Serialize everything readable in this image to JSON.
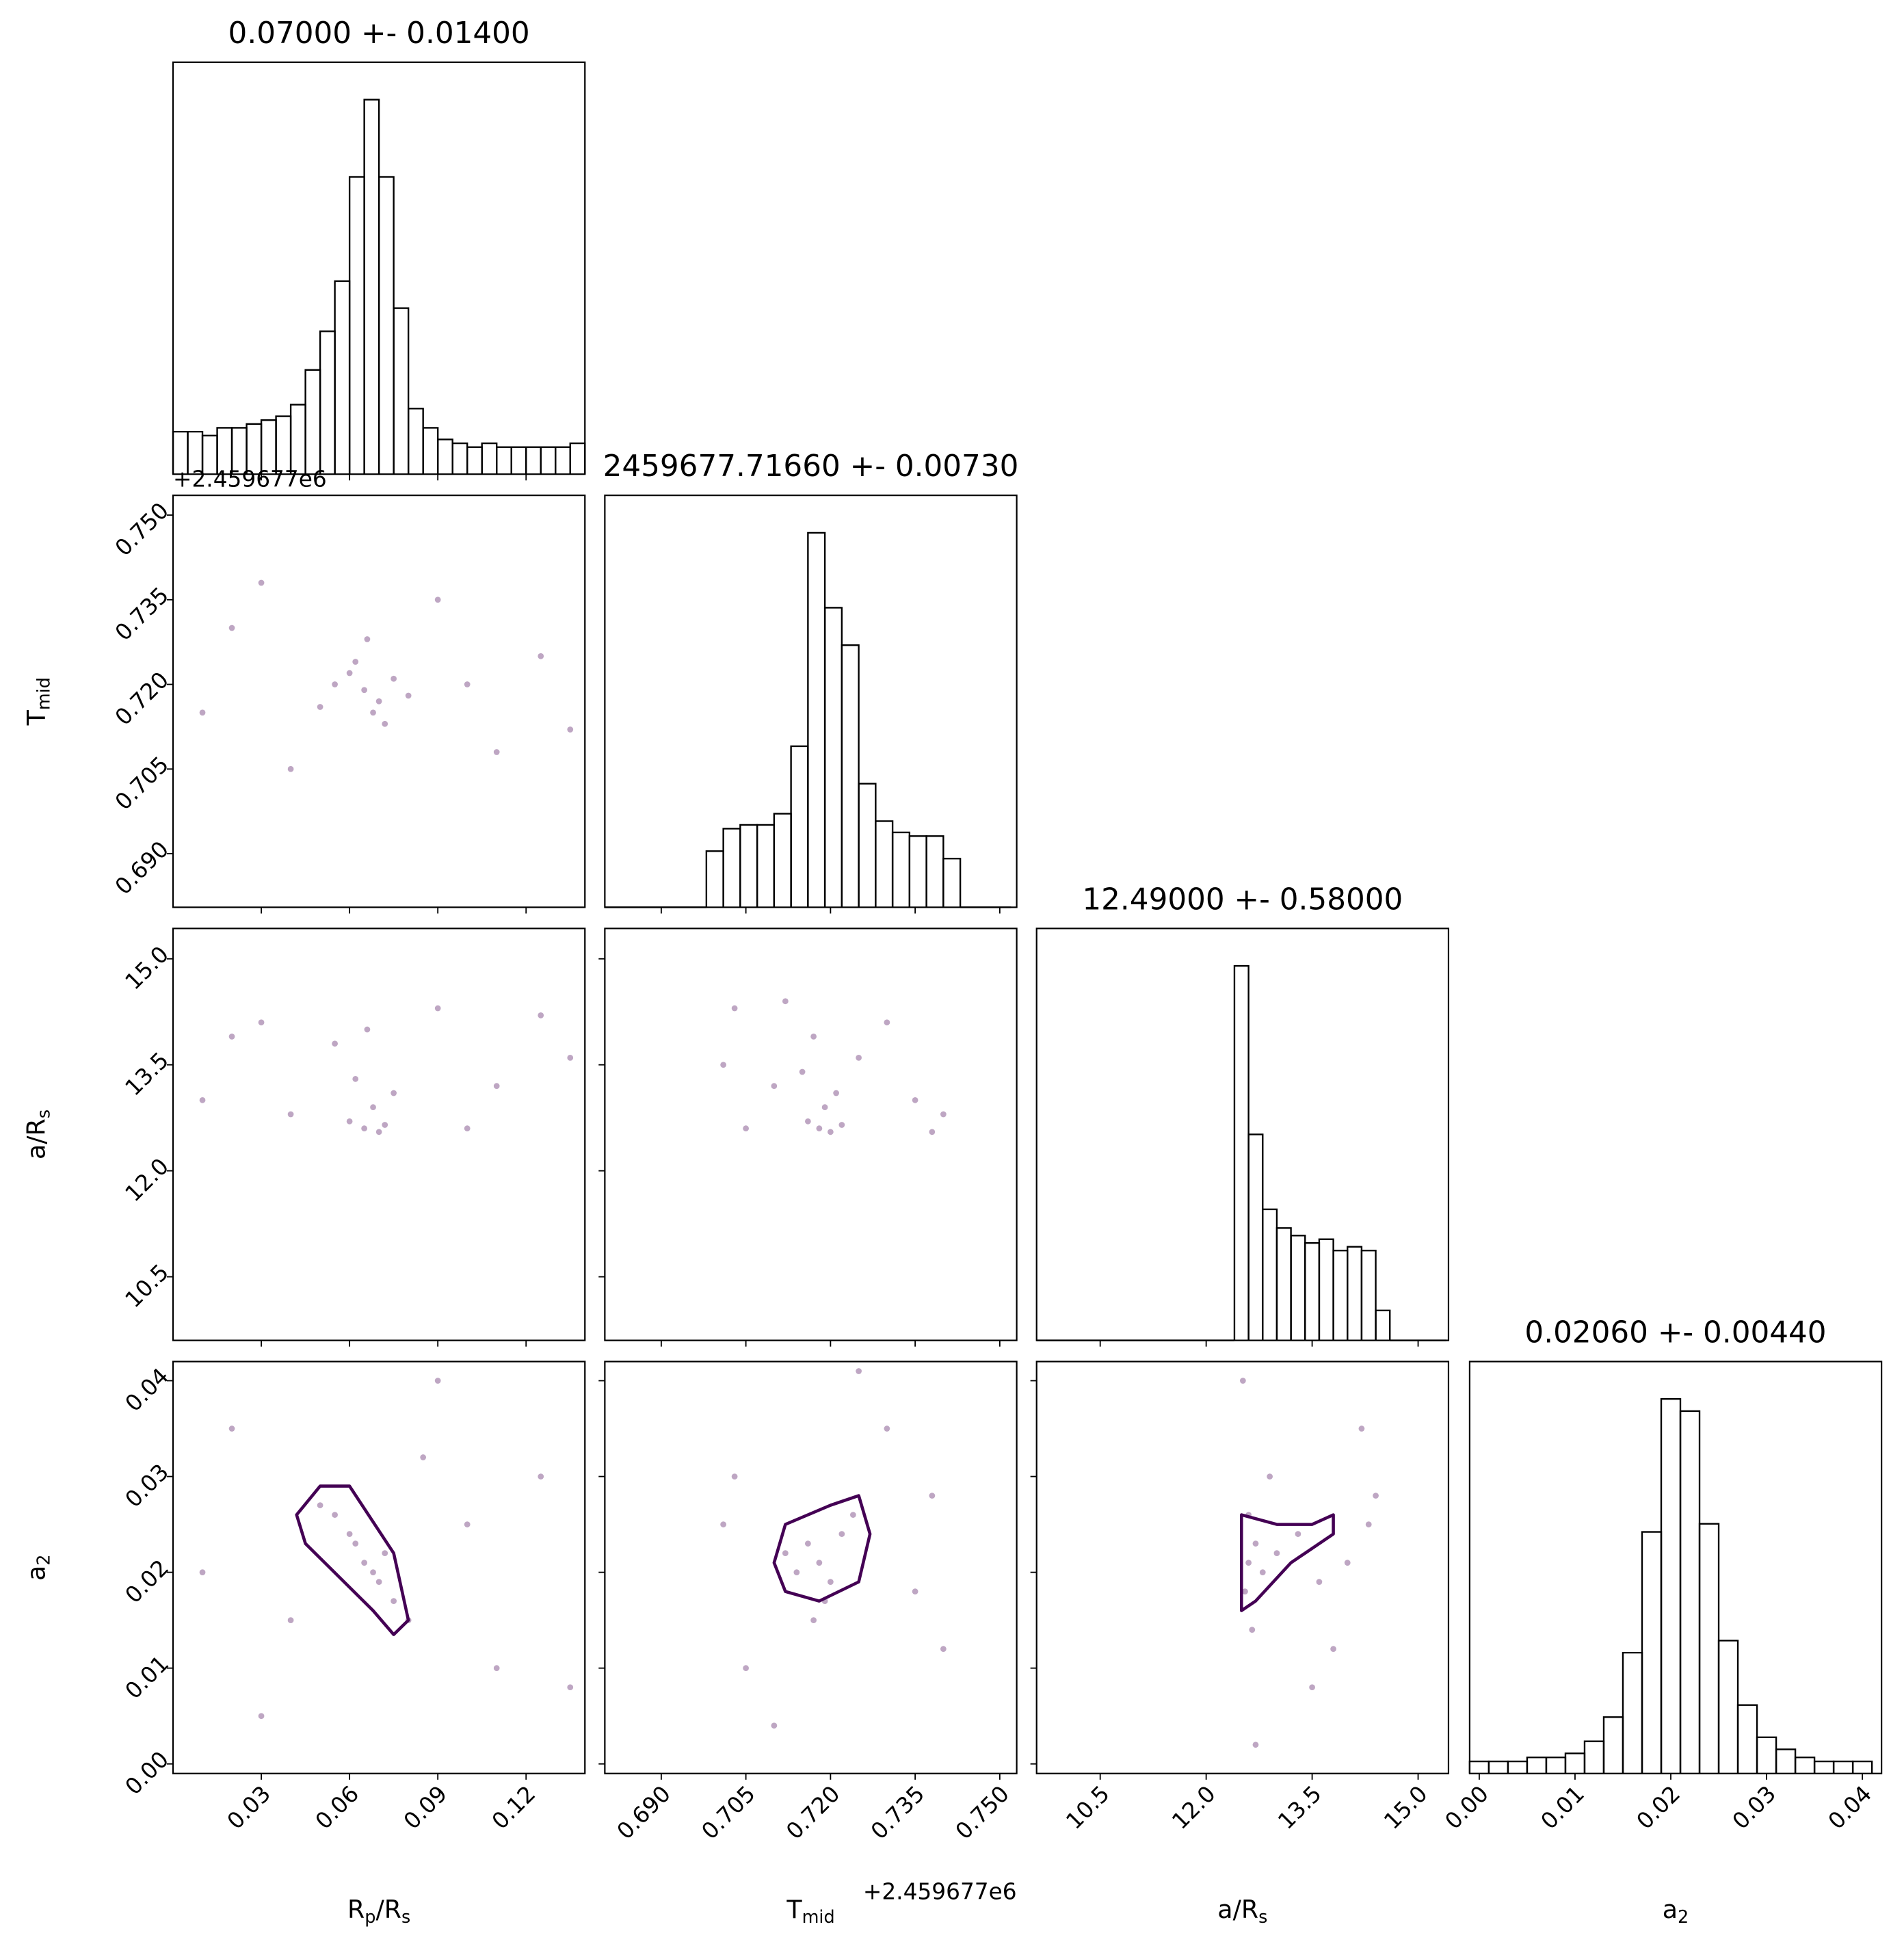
{
  "chart_data": [
    {
      "type": "histogram",
      "title": "0.07000 +- 0.01400",
      "color": "#000000",
      "bins": [
        0,
        0.005,
        0.01,
        0.015,
        0.02,
        0.025,
        0.03,
        0.035,
        0.04,
        0.045,
        0.05,
        0.055,
        0.06,
        0.065,
        0.07,
        0.075,
        0.08,
        0.085,
        0.09,
        0.095,
        0.1,
        0.105,
        0.11,
        0.115,
        0.12,
        0.125,
        0.13,
        0.135,
        0.14
      ],
      "counts": [
        11,
        11,
        10,
        12,
        12,
        13,
        14,
        15,
        18,
        27,
        37,
        50,
        77,
        97,
        77,
        43,
        17,
        12,
        9,
        8,
        7,
        8,
        7,
        7,
        7,
        7,
        7,
        8
      ],
      "xlim": [
        0,
        0.14
      ],
      "xticks": [
        0.03,
        0.06,
        0.09,
        0.12
      ]
    },
    {
      "type": "scatter",
      "color": "#440154",
      "ylabel": [
        "T",
        "mid"
      ],
      "y_offset": "+2.459677e6",
      "x": [
        0.065,
        0.06,
        0.07,
        0.068,
        0.055,
        0.075,
        0.062,
        0.072,
        0.05,
        0.08,
        0.02,
        0.11,
        0.03,
        0.125,
        0.09,
        0.04,
        0.1,
        0.135,
        0.01,
        0.066
      ],
      "y": [
        0.719,
        0.722,
        0.717,
        0.715,
        0.72,
        0.721,
        0.724,
        0.713,
        0.716,
        0.718,
        0.73,
        0.708,
        0.738,
        0.725,
        0.735,
        0.705,
        0.72,
        0.712,
        0.715,
        0.728
      ],
      "xlim": [
        0,
        0.14
      ],
      "xticks": [
        0.03,
        0.06,
        0.09,
        0.12
      ],
      "ylim": [
        0.6805,
        0.7535
      ],
      "yticks": [
        {
          "value": 0.69,
          "label": "0.690"
        },
        {
          "value": 0.705,
          "label": "0.705"
        },
        {
          "value": 0.72,
          "label": "0.720"
        },
        {
          "value": 0.735,
          "label": "0.735"
        },
        {
          "value": 0.75,
          "label": "0.750"
        }
      ]
    },
    {
      "type": "histogram",
      "title": "2459677.71660 +- 0.00730",
      "color": "#000000",
      "bins": [
        0.68,
        0.683,
        0.686,
        0.689,
        0.692,
        0.695,
        0.698,
        0.701,
        0.704,
        0.707,
        0.71,
        0.713,
        0.716,
        0.719,
        0.722,
        0.725,
        0.728,
        0.731,
        0.734,
        0.737,
        0.74,
        0.743,
        0.746,
        0.749,
        0.752
      ],
      "counts": [
        0,
        0,
        0,
        0,
        0,
        0,
        15,
        21,
        22,
        22,
        25,
        43,
        100,
        80,
        70,
        33,
        23,
        20,
        19,
        19,
        13,
        0,
        0,
        0
      ],
      "xlim": [
        0.68,
        0.753
      ],
      "xticks": [
        {
          "value": 0.69,
          "label": "0.690"
        },
        {
          "value": 0.705,
          "label": "0.705"
        },
        {
          "value": 0.72,
          "label": "0.720"
        },
        {
          "value": 0.735,
          "label": "0.735"
        },
        {
          "value": 0.75,
          "label": "0.750"
        }
      ]
    },
    {
      "type": "scatter",
      "color": "#440154",
      "ylabel": [
        "a/R",
        "s"
      ],
      "x": [
        0.065,
        0.06,
        0.07,
        0.068,
        0.062,
        0.072,
        0.055,
        0.075,
        0.02,
        0.11,
        0.04,
        0.125,
        0.09,
        0.01,
        0.1,
        0.135,
        0.03,
        0.066
      ],
      "y": [
        12.6,
        12.7,
        12.55,
        12.9,
        13.3,
        12.65,
        13.8,
        13.1,
        13.9,
        13.2,
        12.8,
        14.2,
        14.3,
        13.0,
        12.6,
        13.6,
        14.1,
        14.0
      ],
      "xlim": [
        0,
        0.14
      ],
      "xticks": [
        0.03,
        0.06,
        0.09,
        0.12
      ],
      "ylim": [
        9.6,
        15.43
      ],
      "yticks": [
        10.5,
        {
          "value": 12,
          "label": "12.0"
        },
        13.5,
        {
          "value": 15,
          "label": "15.0"
        }
      ]
    },
    {
      "type": "scatter",
      "color": "#440154",
      "x": [
        0.718,
        0.716,
        0.72,
        0.719,
        0.715,
        0.722,
        0.717,
        0.703,
        0.74,
        0.71,
        0.73,
        0.735,
        0.705,
        0.725,
        0.712,
        0.738,
        0.701,
        0.721
      ],
      "y": [
        12.6,
        12.7,
        12.55,
        12.9,
        13.4,
        12.65,
        13.9,
        14.3,
        12.8,
        13.2,
        14.1,
        13.0,
        12.6,
        13.6,
        14.4,
        12.55,
        13.5,
        13.1
      ],
      "xlim": [
        0.68,
        0.753
      ],
      "xticks": [
        {
          "value": 0.69,
          "label": "0.690"
        },
        {
          "value": 0.705,
          "label": "0.705"
        },
        {
          "value": 0.72,
          "label": "0.720"
        },
        {
          "value": 0.735,
          "label": "0.735"
        },
        {
          "value": 0.75,
          "label": "0.750"
        }
      ],
      "ylim": [
        9.6,
        15.43
      ],
      "yticks": [
        10.5,
        {
          "value": 12,
          "label": "12.0"
        },
        13.5,
        {
          "value": 15,
          "label": "15.0"
        }
      ]
    },
    {
      "type": "histogram",
      "title": "12.49000 +- 0.58000",
      "color": "#000000",
      "bins": [
        9.6,
        9.8,
        10.0,
        10.2,
        10.4,
        10.6,
        10.8,
        11.0,
        11.2,
        11.4,
        11.6,
        11.8,
        12.0,
        12.2,
        12.4,
        12.6,
        12.8,
        13.0,
        13.2,
        13.4,
        13.6,
        13.8,
        14.0,
        14.2,
        14.4,
        14.6,
        14.8,
        15.0,
        15.2,
        15.4
      ],
      "counts": [
        0,
        0,
        0,
        0,
        0,
        0,
        0,
        0,
        0,
        0,
        0,
        0,
        0,
        0,
        100,
        55,
        35,
        30,
        28,
        26,
        27,
        24,
        25,
        24,
        8,
        0,
        0,
        0,
        0
      ],
      "xlim": [
        9.6,
        15.43
      ],
      "xticks": [
        10.5,
        {
          "value": 12,
          "label": "12.0"
        },
        13.5,
        {
          "value": 15,
          "label": "15.0"
        }
      ]
    },
    {
      "type": "scatter",
      "color": "#440154",
      "ylabel": [
        "a",
        "2"
      ],
      "xlabel": [
        "R",
        "p",
        "/R",
        "s"
      ],
      "x": [
        0.065,
        0.06,
        0.07,
        0.055,
        0.075,
        0.068,
        0.05,
        0.062,
        0.08,
        0.072,
        0.02,
        0.11,
        0.03,
        0.125,
        0.09,
        0.04,
        0.1,
        0.01,
        0.135,
        0.085
      ],
      "y": [
        0.021,
        0.024,
        0.019,
        0.026,
        0.017,
        0.02,
        0.027,
        0.023,
        0.015,
        0.022,
        0.035,
        0.01,
        0.005,
        0.03,
        0.04,
        0.015,
        0.025,
        0.02,
        0.008,
        0.032
      ],
      "contour_x": [
        0.05,
        0.06,
        0.075,
        0.08,
        0.075,
        0.068,
        0.045,
        0.042
      ],
      "contour_y": [
        0.029,
        0.029,
        0.022,
        0.015,
        0.0135,
        0.016,
        0.023,
        0.026
      ],
      "xlim": [
        0,
        0.14
      ],
      "xticks": [
        0.03,
        0.06,
        0.09,
        0.12
      ],
      "ylim": [
        -0.001,
        0.042
      ],
      "yticks": [
        {
          "value": 0,
          "label": "0.00"
        },
        0.01,
        0.02,
        0.03,
        0.04
      ]
    },
    {
      "type": "scatter",
      "color": "#440154",
      "xlabel": [
        "T",
        "mid"
      ],
      "x_offset": "+2.459677e6",
      "x": [
        0.718,
        0.716,
        0.72,
        0.714,
        0.722,
        0.719,
        0.712,
        0.724,
        0.703,
        0.74,
        0.71,
        0.73,
        0.735,
        0.705,
        0.725,
        0.701,
        0.738,
        0.717
      ],
      "y": [
        0.021,
        0.023,
        0.019,
        0.02,
        0.024,
        0.017,
        0.022,
        0.026,
        0.03,
        0.012,
        0.004,
        0.035,
        0.018,
        0.01,
        0.041,
        0.025,
        0.028,
        0.015
      ],
      "contour_x": [
        0.712,
        0.72,
        0.725,
        0.727,
        0.725,
        0.718,
        0.712,
        0.71
      ],
      "contour_y": [
        0.025,
        0.027,
        0.028,
        0.024,
        0.019,
        0.017,
        0.018,
        0.021
      ],
      "xlim": [
        0.68,
        0.753
      ],
      "xticks": [
        {
          "value": 0.69,
          "label": "0.690"
        },
        {
          "value": 0.705,
          "label": "0.705"
        },
        {
          "value": 0.72,
          "label": "0.720"
        },
        {
          "value": 0.735,
          "label": "0.735"
        },
        {
          "value": 0.75,
          "label": "0.750"
        }
      ],
      "ylim": [
        -0.001,
        0.042
      ],
      "yticks": [
        {
          "value": 0,
          "label": "0.00"
        },
        0.01,
        0.02,
        0.03,
        0.04
      ]
    },
    {
      "type": "scatter",
      "color": "#440154",
      "xlabel": [
        "a/R",
        "s"
      ],
      "x": [
        12.6,
        12.55,
        12.7,
        12.8,
        12.6,
        13.0,
        13.3,
        13.6,
        14.0,
        14.3,
        12.65,
        12.9,
        13.5,
        14.2,
        12.52,
        13.8,
        12.7,
        14.4
      ],
      "y": [
        0.021,
        0.018,
        0.023,
        0.02,
        0.026,
        0.022,
        0.024,
        0.019,
        0.021,
        0.025,
        0.014,
        0.03,
        0.008,
        0.035,
        0.04,
        0.012,
        0.002,
        0.028
      ],
      "contour_x": [
        12.5,
        13.0,
        13.5,
        13.8,
        13.8,
        13.2,
        12.7,
        12.5
      ],
      "contour_y": [
        0.026,
        0.025,
        0.025,
        0.026,
        0.024,
        0.021,
        0.017,
        0.016
      ],
      "xlim": [
        9.6,
        15.43
      ],
      "xticks": [
        10.5,
        {
          "value": 12,
          "label": "12.0"
        },
        13.5,
        {
          "value": 15,
          "label": "15.0"
        }
      ],
      "ylim": [
        -0.001,
        0.042
      ],
      "yticks": [
        {
          "value": 0,
          "label": "0.00"
        },
        0.01,
        0.02,
        0.03,
        0.04
      ]
    },
    {
      "type": "histogram",
      "title": "0.02060 +- 0.00440",
      "color": "#000000",
      "xlabel": [
        "a",
        "2"
      ],
      "bins": [
        -0.001,
        0.001,
        0.003,
        0.005,
        0.007,
        0.009,
        0.011,
        0.013,
        0.015,
        0.017,
        0.019,
        0.021,
        0.023,
        0.025,
        0.027,
        0.029,
        0.031,
        0.033,
        0.035,
        0.037,
        0.039,
        0.041
      ],
      "counts": [
        3,
        3,
        3,
        4,
        4,
        5,
        8,
        14,
        30,
        60,
        93,
        90,
        62,
        33,
        17,
        9,
        6,
        4,
        3,
        3,
        3
      ],
      "xlim": [
        -0.001,
        0.042
      ],
      "xticks": [
        {
          "value": 0,
          "label": "0.00"
        },
        0.01,
        0.02,
        0.03,
        0.04
      ]
    }
  ]
}
